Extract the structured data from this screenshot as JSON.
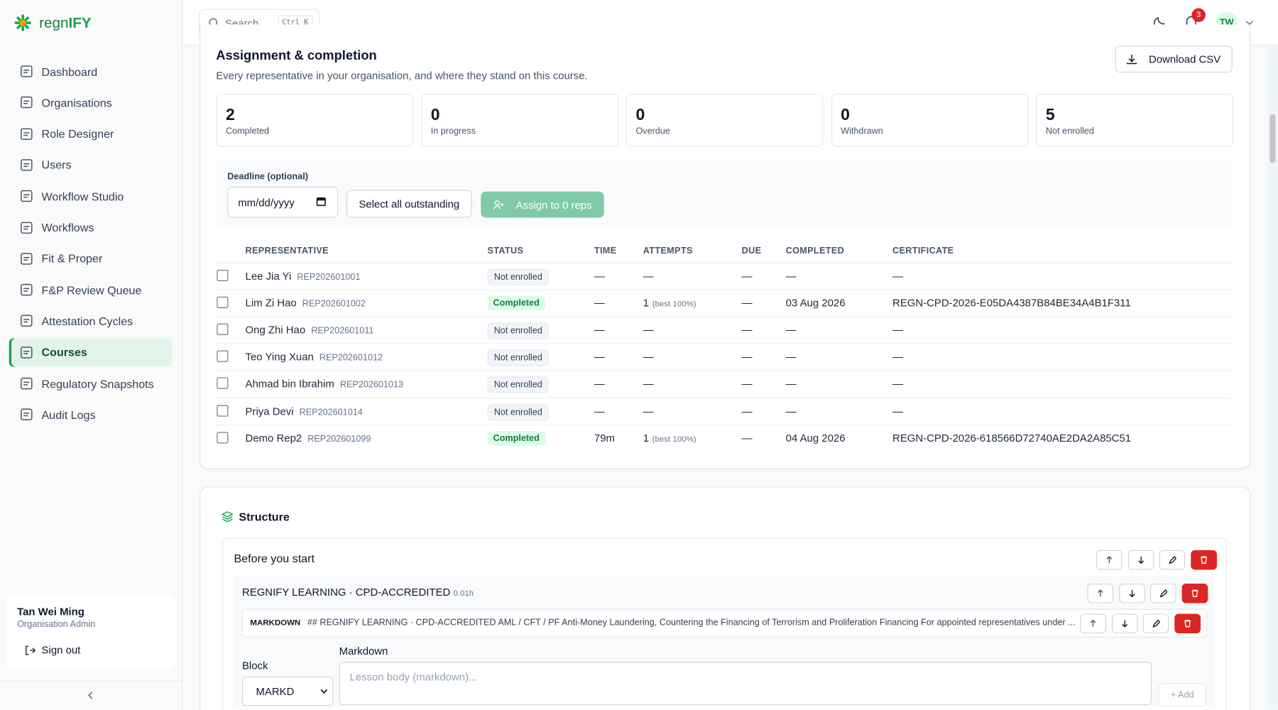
{
  "brand": {
    "prefix": "regn",
    "suffix": "IFY"
  },
  "search": {
    "placeholder": "Search...",
    "shortcut": "Ctrl K"
  },
  "notifications": {
    "count": 3
  },
  "avatar": "TW",
  "nav": [
    "Dashboard",
    "Organisations",
    "Role Designer",
    "Users",
    "Workflow Studio",
    "Workflows",
    "Fit & Proper",
    "F&P Review Queue",
    "Attestation Cycles",
    "Courses",
    "Regulatory Snapshots",
    "Audit Logs"
  ],
  "nav_active": "Courses",
  "user": {
    "name": "Tan Wei Ming",
    "role": "Organisation Admin",
    "sign_out": "Sign out"
  },
  "assignment": {
    "title": "Assignment & completion",
    "subtitle": "Every representative in your organisation, and where they stand on this course.",
    "download": "Download CSV",
    "stats": [
      {
        "value": 2,
        "label": "Completed"
      },
      {
        "value": 0,
        "label": "In progress"
      },
      {
        "value": 0,
        "label": "Overdue"
      },
      {
        "value": 0,
        "label": "Withdrawn"
      },
      {
        "value": 5,
        "label": "Not enrolled"
      }
    ],
    "deadline_label": "Deadline (optional)",
    "deadline_placeholder": "mm/dd/yyyy",
    "select_all": "Select all outstanding",
    "assign": "Assign to 0 reps",
    "columns": [
      "REPRESENTATIVE",
      "STATUS",
      "TIME",
      "ATTEMPTS",
      "DUE",
      "COMPLETED",
      "CERTIFICATE"
    ],
    "rows": [
      {
        "name": "Lee Jia Yi",
        "id": "REP202601001",
        "status": "Not enrolled",
        "time": "—",
        "attempts": "—",
        "due": "—",
        "completed": "—",
        "certificate": "—"
      },
      {
        "name": "Lim Zi Hao",
        "id": "REP202601002",
        "status": "Completed",
        "time": "—",
        "attempts": "1",
        "attempts_note": "(best 100%)",
        "due": "—",
        "completed": "03 Aug 2026",
        "certificate": "REGN-CPD-2026-E05DA4387B84BE34A4B1F311"
      },
      {
        "name": "Ong Zhi Hao",
        "id": "REP202601011",
        "status": "Not enrolled",
        "time": "—",
        "attempts": "—",
        "due": "—",
        "completed": "—",
        "certificate": "—"
      },
      {
        "name": "Teo Ying Xuan",
        "id": "REP202601012",
        "status": "Not enrolled",
        "time": "—",
        "attempts": "—",
        "due": "—",
        "completed": "—",
        "certificate": "—"
      },
      {
        "name": "Ahmad bin Ibrahim",
        "id": "REP202601013",
        "status": "Not enrolled",
        "time": "—",
        "attempts": "—",
        "due": "—",
        "completed": "—",
        "certificate": "—"
      },
      {
        "name": "Priya Devi",
        "id": "REP202601014",
        "status": "Not enrolled",
        "time": "—",
        "attempts": "—",
        "due": "—",
        "completed": "—",
        "certificate": "—"
      },
      {
        "name": "Demo Rep2",
        "id": "REP202601099",
        "status": "Completed",
        "time": "79m",
        "attempts": "1",
        "attempts_note": "(best 100%)",
        "due": "—",
        "completed": "04 Aug 2026",
        "certificate": "REGN-CPD-2026-618566D72740AE2DA2A85C51"
      }
    ]
  },
  "structure": {
    "title": "Structure",
    "section": "Before you start",
    "module": {
      "title": "REGNIFY LEARNING · CPD-ACCREDITED",
      "duration": "0.01h"
    },
    "block": {
      "type": "MARKDOWN",
      "text": "## REGNIFY LEARNING · CPD-ACCREDITED AML / CFT / PF Anti-Money Laundering, Countering the Financing of Terrorism and Proliferation Financing For appointed representatives under ..."
    },
    "form": {
      "block_label": "Block",
      "block_select": "MARKD",
      "markdown_label": "Markdown",
      "markdown_placeholder": "Lesson body (markdown)...",
      "add": "+ Add"
    }
  }
}
